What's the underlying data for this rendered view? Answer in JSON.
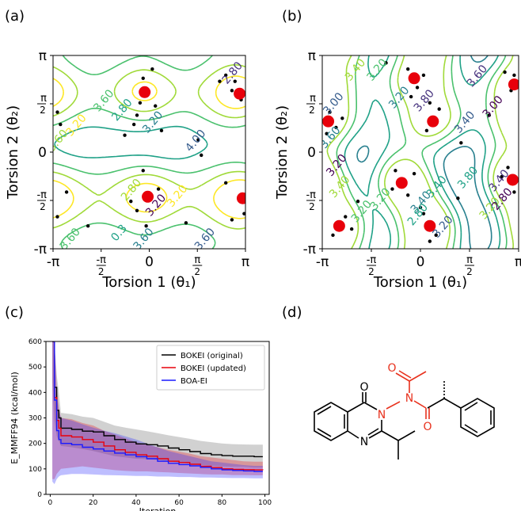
{
  "panels": {
    "a": "(a)",
    "b": "(b)",
    "c": "(c)",
    "d": "(d)"
  },
  "chart_data": [
    {
      "type": "contour",
      "panel": "(a)",
      "xlabel": "Torsion 1 (θ₁)",
      "ylabel": "Torsion 2 (θ₂)",
      "xticks": [
        "-π",
        "-π/2",
        "0",
        "π/2",
        "π"
      ],
      "yticks": [
        "-π",
        "-π/2",
        "0",
        "π/2",
        "π"
      ],
      "xlim": [
        -3.1416,
        3.1416
      ],
      "ylim": [
        -3.1416,
        3.1416
      ],
      "contour_labels": [
        "3.20",
        "3.60",
        "3.60",
        "2.80",
        "3.20",
        "4.00",
        "2.80",
        "3.20",
        "3.20",
        "2.80",
        "3.60",
        "0.3",
        "3.60",
        "3.60"
      ],
      "minima": [
        [
          -0.15,
          1.95
        ],
        [
          -0.05,
          -1.45
        ],
        [
          2.95,
          1.9
        ],
        [
          3.05,
          -1.5
        ]
      ],
      "samples": [
        [
          -0.2,
          2.4
        ],
        [
          -0.3,
          1.6
        ],
        [
          0.1,
          2.7
        ],
        [
          -0.4,
          1.2
        ],
        [
          0.2,
          1.5
        ],
        [
          0.4,
          0.7
        ],
        [
          -0.8,
          0.55
        ],
        [
          -0.5,
          0.9
        ],
        [
          2.5,
          2.5
        ],
        [
          2.3,
          2.3
        ],
        [
          2.7,
          2.0
        ],
        [
          3.0,
          1.7
        ],
        [
          2.8,
          2.3
        ],
        [
          -3.0,
          1.3
        ],
        [
          -2.9,
          0.9
        ],
        [
          -0.2,
          -0.6
        ],
        [
          -0.4,
          -1.9
        ],
        [
          0.3,
          -1.2
        ],
        [
          -0.6,
          -1.6
        ],
        [
          -0.1,
          -2.4
        ],
        [
          2.5,
          -1.0
        ],
        [
          2.7,
          -2.2
        ],
        [
          3.1,
          -2.0
        ],
        [
          -3.0,
          -2.1
        ],
        [
          -2.7,
          -1.3
        ],
        [
          -2.0,
          -2.4
        ],
        [
          1.2,
          -2.3
        ],
        [
          1.6,
          0.4
        ],
        [
          1.7,
          -0.1
        ]
      ]
    },
    {
      "type": "contour",
      "panel": "(b)",
      "xlabel": "Torsion 1 (θ₁)",
      "ylabel": "Torsion 2 (θ₂)",
      "xticks": [
        "-π",
        "-π/2",
        "0",
        "π/2",
        "π"
      ],
      "yticks": [
        "-π",
        "-π/2",
        "0",
        "π/2",
        "π"
      ],
      "xlim": [
        -3.1416,
        3.1416
      ],
      "ylim": [
        -3.1416,
        3.1416
      ],
      "contour_labels": [
        "3.40",
        "3.20",
        "3.80",
        "3.40",
        "3.20",
        "3.60",
        "3.20",
        "3.40",
        "3.20",
        "2.80",
        "3.60",
        "3.00",
        "3.40",
        "3.00",
        "3.20",
        "3.20",
        "3.40",
        "3.20",
        "3.40",
        "3.80",
        "2.80"
      ],
      "minima": [
        [
          -2.95,
          1.0
        ],
        [
          -0.2,
          2.4
        ],
        [
          0.4,
          1.0
        ],
        [
          3.0,
          2.2
        ],
        [
          -0.6,
          -1.0
        ],
        [
          0.3,
          -2.4
        ],
        [
          -2.6,
          -2.4
        ],
        [
          2.95,
          -0.9
        ]
      ],
      "samples": [
        [
          -2.9,
          1.3
        ],
        [
          -2.7,
          0.8
        ],
        [
          -3.0,
          0.6
        ],
        [
          -2.5,
          1.1
        ],
        [
          -0.4,
          2.7
        ],
        [
          -0.1,
          2.1
        ],
        [
          0.1,
          2.5
        ],
        [
          -0.3,
          1.8
        ],
        [
          0.2,
          0.7
        ],
        [
          0.6,
          1.4
        ],
        [
          0.3,
          1.6
        ],
        [
          2.7,
          2.6
        ],
        [
          2.9,
          2.0
        ],
        [
          3.0,
          2.5
        ],
        [
          -0.8,
          -0.6
        ],
        [
          -0.4,
          -1.4
        ],
        [
          -0.9,
          -1.2
        ],
        [
          -0.2,
          -0.7
        ],
        [
          0.1,
          -2.0
        ],
        [
          0.5,
          -2.7
        ],
        [
          0.3,
          -2.9
        ],
        [
          0.0,
          -1.8
        ],
        [
          -2.4,
          -2.1
        ],
        [
          -2.8,
          -2.7
        ],
        [
          -2.2,
          -2.5
        ],
        [
          2.8,
          -0.5
        ],
        [
          3.0,
          -1.3
        ],
        [
          2.6,
          -0.8
        ],
        [
          -2.0,
          -1.6
        ],
        [
          1.3,
          0.3
        ],
        [
          1.2,
          -1.5
        ],
        [
          -1.1,
          2.9
        ],
        [
          2.2,
          1.2
        ]
      ]
    },
    {
      "type": "line",
      "panel": "(c)",
      "xlabel": "Iteration",
      "ylabel": "E_MMFF94 (kcal/mol)",
      "xlim": [
        -2,
        102
      ],
      "ylim": [
        0,
        600
      ],
      "xticks": [
        0,
        20,
        40,
        60,
        80,
        100
      ],
      "yticks": [
        0,
        100,
        200,
        300,
        400,
        500,
        600
      ],
      "legend_position": "top-right",
      "series": [
        {
          "name": "BOKEI (original)",
          "color": "#000000",
          "x": [
            1,
            2,
            3,
            4,
            5,
            10,
            15,
            20,
            25,
            30,
            35,
            40,
            45,
            50,
            55,
            60,
            65,
            70,
            75,
            80,
            85,
            90,
            95,
            99
          ],
          "y": [
            600,
            420,
            330,
            300,
            260,
            255,
            248,
            245,
            230,
            215,
            205,
            198,
            195,
            190,
            182,
            175,
            168,
            160,
            155,
            152,
            150,
            150,
            148,
            148
          ],
          "lower": [
            440,
            290,
            230,
            210,
            190,
            185,
            178,
            170,
            160,
            150,
            145,
            140,
            138,
            135,
            130,
            125,
            120,
            115,
            112,
            110,
            108,
            108,
            105,
            105
          ],
          "upper": [
            600,
            600,
            470,
            400,
            320,
            315,
            305,
            300,
            285,
            270,
            262,
            255,
            248,
            240,
            232,
            225,
            218,
            210,
            205,
            200,
            197,
            196,
            195,
            195
          ]
        },
        {
          "name": "BOKEI (updated)",
          "color": "#e8000b",
          "x": [
            1,
            2,
            3,
            4,
            5,
            10,
            15,
            20,
            25,
            30,
            35,
            40,
            45,
            50,
            55,
            60,
            65,
            70,
            75,
            80,
            85,
            90,
            95,
            99
          ],
          "y": [
            600,
            380,
            290,
            260,
            230,
            225,
            215,
            205,
            190,
            175,
            165,
            155,
            150,
            140,
            130,
            125,
            118,
            110,
            105,
            100,
            98,
            97,
            96,
            95
          ],
          "lower": [
            60,
            60,
            80,
            90,
            100,
            105,
            110,
            105,
            100,
            95,
            92,
            90,
            90,
            88,
            86,
            84,
            82,
            80,
            78,
            78,
            76,
            76,
            75,
            75
          ],
          "upper": [
            600,
            600,
            420,
            340,
            300,
            295,
            280,
            270,
            250,
            235,
            220,
            205,
            195,
            185,
            175,
            168,
            160,
            150,
            145,
            140,
            135,
            130,
            128,
            128
          ]
        },
        {
          "name": "BOA-EI",
          "color": "#1a1aff",
          "x": [
            1,
            2,
            3,
            4,
            5,
            10,
            15,
            20,
            25,
            30,
            35,
            40,
            45,
            50,
            55,
            60,
            65,
            70,
            75,
            80,
            85,
            90,
            95,
            99
          ],
          "y": [
            600,
            370,
            250,
            215,
            200,
            195,
            185,
            178,
            170,
            162,
            155,
            148,
            140,
            130,
            122,
            117,
            112,
            106,
            100,
            96,
            94,
            92,
            90,
            90
          ],
          "lower": [
            50,
            40,
            60,
            70,
            75,
            80,
            80,
            78,
            76,
            75,
            74,
            72,
            72,
            70,
            70,
            68,
            68,
            66,
            66,
            65,
            64,
            64,
            63,
            63
          ],
          "upper": [
            600,
            600,
            400,
            330,
            300,
            290,
            275,
            262,
            250,
            240,
            228,
            215,
            200,
            185,
            170,
            160,
            150,
            140,
            130,
            125,
            120,
            115,
            112,
            112
          ]
        }
      ]
    }
  ],
  "molecule": {
    "atoms": {
      "O1": "O",
      "N1": "N",
      "N2": "N",
      "O2": "O",
      "N3": "N",
      "O3": "O"
    }
  }
}
